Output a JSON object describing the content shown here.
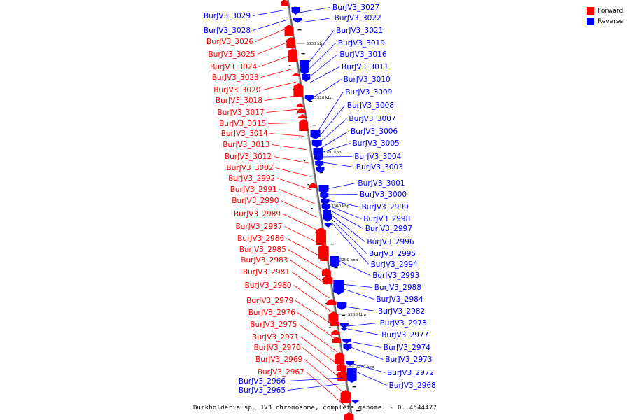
{
  "colors": {
    "forward": "#ff0000",
    "reverse": "#0000ff",
    "axis": "#888888",
    "tick": "#000000"
  },
  "legend": {
    "forward_label": "Forward",
    "reverse_label": "Reverse"
  },
  "caption": "Burkholderia sp. JV3 chromosome, complete genome. - 0..4544477",
  "scale_ticks": [
    "3330 kbp",
    "3320 kbp",
    "3310 kbp",
    "3300 kbp",
    "3290 kbp",
    "3280 kbp",
    "3270 kbp"
  ],
  "forward_genes": [
    "BurJV3_3026",
    "BurJV3_3025",
    "BurJV3_3024",
    "BurJV3_3023",
    "BurJV3_3020",
    "BurJV3_3018",
    "BurJV3_3017",
    "BurJV3_3015",
    "BurJV3_3014",
    "BurJV3_3013",
    "BurJV3_3012",
    "BurJV3_3002",
    "BurJV3_2992",
    "BurJV3_2991",
    "BurJV3_2990",
    "BurJV3_2989",
    "BurJV3_2987",
    "BurJV3_2986",
    "BurJV3_2985",
    "BurJV3_2983",
    "BurJV3_2981",
    "BurJV3_2980",
    "BurJV3_2979",
    "BurJV3_2976",
    "BurJV3_2975",
    "BurJV3_2971",
    "BurJV3_2970",
    "BurJV3_2969",
    "BurJV3_2967"
  ],
  "reverse_genes_left": [
    "BurJV3_3029",
    "BurJV3_3028",
    "BurJV3_2966",
    "BurJV3_2965"
  ],
  "reverse_genes_right": [
    "BurJV3_3027",
    "BurJV3_3022",
    "BurJV3_3021",
    "BurJV3_3019",
    "BurJV3_3016",
    "BurJV3_3011",
    "BurJV3_3010",
    "BurJV3_3009",
    "BurJV3_3008",
    "BurJV3_3007",
    "BurJV3_3006",
    "BurJV3_3005",
    "BurJV3_3004",
    "BurJV3_3003",
    "BurJV3_3001",
    "BurJV3_3000",
    "BurJV3_2999",
    "BurJV3_2998",
    "BurJV3_2997",
    "BurJV3_2996",
    "BurJV3_2995",
    "BurJV3_2994",
    "BurJV3_2993",
    "BurJV3_2988",
    "BurJV3_2984",
    "BurJV3_2982",
    "BurJV3_2978",
    "BurJV3_2977",
    "BurJV3_2974",
    "BurJV3_2973",
    "BurJV3_2972",
    "BurJV3_2968"
  ]
}
